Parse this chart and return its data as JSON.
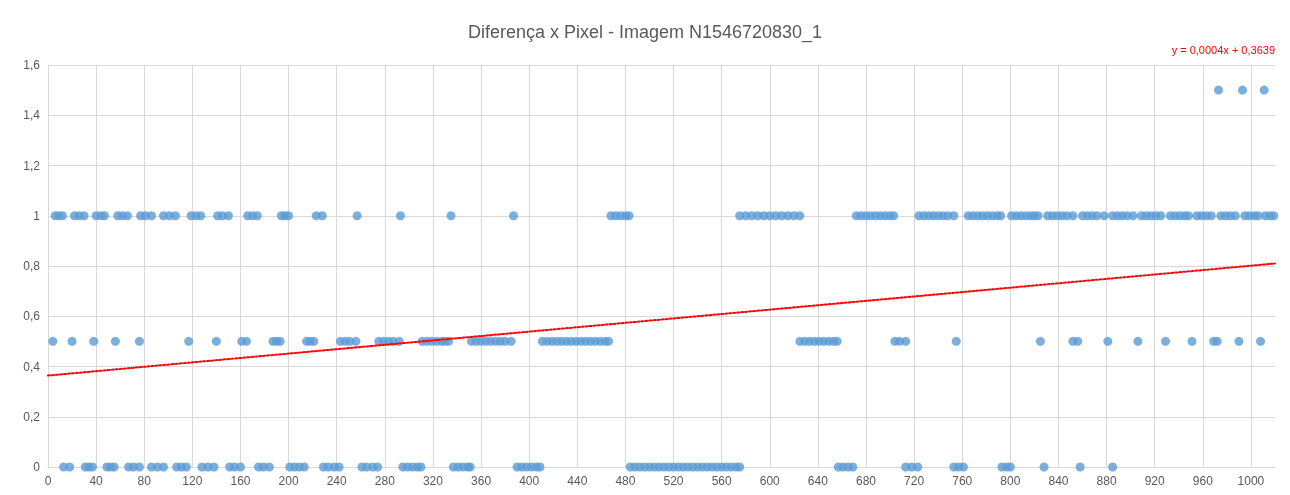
{
  "chart_data": {
    "type": "scatter",
    "title": "Diferença x Pixel - Imagem N1546720830_1",
    "annotations": [
      "y = 0,0004x + 0,3639"
    ],
    "xlim": [
      0,
      1020
    ],
    "xticks": [
      0,
      40,
      80,
      120,
      160,
      200,
      240,
      280,
      320,
      360,
      400,
      440,
      480,
      520,
      560,
      600,
      640,
      680,
      720,
      760,
      800,
      840,
      880,
      920,
      960,
      1000
    ],
    "ylim": [
      0,
      1.6
    ],
    "yticks": [
      0,
      {
        "value": 0.2,
        "label": "0,2"
      },
      {
        "value": 0.4,
        "label": "0,4"
      },
      {
        "value": 0.6,
        "label": "0,6"
      },
      {
        "value": 0.8,
        "label": "0,8"
      },
      1,
      {
        "value": 1.2,
        "label": "1,2"
      },
      {
        "value": 1.4,
        "label": "1,4"
      },
      {
        "value": 1.6,
        "label": "1,6"
      }
    ],
    "grid": true,
    "marker": "circle",
    "series": [
      {
        "color": "#5b9bd5",
        "x": [
          6,
          9,
          12,
          22,
          26,
          30,
          40,
          44,
          47,
          58,
          62,
          66,
          77,
          81,
          86,
          96,
          101,
          106,
          119,
          123,
          127,
          141,
          145,
          150,
          166,
          170,
          174,
          194,
          197,
          200,
          223,
          228,
          257,
          293,
          335,
          387,
          468,
          472,
          476,
          480,
          483,
          575,
          580,
          585,
          590,
          595,
          600,
          605,
          610,
          615,
          620,
          625,
          672,
          676,
          680,
          684,
          688,
          692,
          696,
          700,
          703,
          724,
          728,
          732,
          736,
          740,
          744,
          748,
          753,
          765,
          769,
          773,
          777,
          781,
          785,
          789,
          792,
          801,
          805,
          809,
          813,
          817,
          820,
          823,
          831,
          835,
          839,
          843,
          847,
          852,
          860,
          864,
          868,
          872,
          878,
          885,
          889,
          893,
          897,
          902,
          909,
          913,
          917,
          921,
          925,
          933,
          937,
          941,
          945,
          948,
          955,
          959,
          963,
          967,
          975,
          979,
          983,
          987,
          995,
          999,
          1003,
          1006,
          1012,
          1016,
          1019,
          4,
          20,
          38,
          56,
          76,
          117,
          140,
          161,
          165,
          187,
          190,
          193,
          215,
          218,
          221,
          243,
          247,
          251,
          256,
          275,
          279,
          283,
          287,
          292,
          311,
          315,
          319,
          323,
          327,
          330,
          333,
          352,
          356,
          360,
          364,
          368,
          372,
          376,
          380,
          385,
          411,
          415,
          419,
          423,
          427,
          431,
          435,
          439,
          443,
          447,
          451,
          455,
          459,
          463,
          466,
          625,
          629,
          633,
          637,
          641,
          645,
          649,
          653,
          656,
          704,
          708,
          713,
          755,
          825,
          852,
          856,
          881,
          906,
          929,
          951,
          969,
          972,
          990,
          1008,
          13,
          18,
          31,
          34,
          37,
          49,
          52,
          55,
          67,
          71,
          76,
          86,
          91,
          96,
          107,
          111,
          115,
          128,
          133,
          138,
          151,
          155,
          160,
          175,
          179,
          184,
          201,
          205,
          209,
          213,
          229,
          233,
          238,
          242,
          261,
          265,
          270,
          274,
          295,
          299,
          303,
          307,
          310,
          337,
          341,
          345,
          349,
          351,
          390,
          394,
          398,
          402,
          406,
          409,
          484,
          488,
          492,
          496,
          500,
          504,
          508,
          512,
          516,
          520,
          524,
          528,
          532,
          536,
          540,
          544,
          548,
          552,
          556,
          560,
          564,
          568,
          572,
          575,
          657,
          661,
          665,
          669,
          713,
          718,
          723,
          753,
          757,
          761,
          793,
          797,
          800,
          828,
          858,
          885,
          973,
          993,
          1011
        ],
        "values": [
          1,
          1,
          1,
          1,
          1,
          1,
          1,
          1,
          1,
          1,
          1,
          1,
          1,
          1,
          1,
          1,
          1,
          1,
          1,
          1,
          1,
          1,
          1,
          1,
          1,
          1,
          1,
          1,
          1,
          1,
          1,
          1,
          1,
          1,
          1,
          1,
          1,
          1,
          1,
          1,
          1,
          1,
          1,
          1,
          1,
          1,
          1,
          1,
          1,
          1,
          1,
          1,
          1,
          1,
          1,
          1,
          1,
          1,
          1,
          1,
          1,
          1,
          1,
          1,
          1,
          1,
          1,
          1,
          1,
          1,
          1,
          1,
          1,
          1,
          1,
          1,
          1,
          1,
          1,
          1,
          1,
          1,
          1,
          1,
          1,
          1,
          1,
          1,
          1,
          1,
          1,
          1,
          1,
          1,
          1,
          1,
          1,
          1,
          1,
          1,
          1,
          1,
          1,
          1,
          1,
          1,
          1,
          1,
          1,
          1,
          1,
          1,
          1,
          1,
          1,
          1,
          1,
          1,
          1,
          1,
          1,
          1,
          1,
          1,
          1,
          0.5,
          0.5,
          0.5,
          0.5,
          0.5,
          0.5,
          0.5,
          0.5,
          0.5,
          0.5,
          0.5,
          0.5,
          0.5,
          0.5,
          0.5,
          0.5,
          0.5,
          0.5,
          0.5,
          0.5,
          0.5,
          0.5,
          0.5,
          0.5,
          0.5,
          0.5,
          0.5,
          0.5,
          0.5,
          0.5,
          0.5,
          0.5,
          0.5,
          0.5,
          0.5,
          0.5,
          0.5,
          0.5,
          0.5,
          0.5,
          0.5,
          0.5,
          0.5,
          0.5,
          0.5,
          0.5,
          0.5,
          0.5,
          0.5,
          0.5,
          0.5,
          0.5,
          0.5,
          0.5,
          0.5,
          0.5,
          0.5,
          0.5,
          0.5,
          0.5,
          0.5,
          0.5,
          0.5,
          0.5,
          0.5,
          0.5,
          0.5,
          0.5,
          0.5,
          0.5,
          0.5,
          0.5,
          0.5,
          0.5,
          0.5,
          0.5,
          0.5,
          0.5,
          0.5,
          0,
          0,
          0,
          0,
          0,
          0,
          0,
          0,
          0,
          0,
          0,
          0,
          0,
          0,
          0,
          0,
          0,
          0,
          0,
          0,
          0,
          0,
          0,
          0,
          0,
          0,
          0,
          0,
          0,
          0,
          0,
          0,
          0,
          0,
          0,
          0,
          0,
          0,
          0,
          0,
          0,
          0,
          0,
          0,
          0,
          0,
          0,
          0,
          0,
          0,
          0,
          0,
          0,
          0,
          0,
          0,
          0,
          0,
          0,
          0,
          0,
          0,
          0,
          0,
          0,
          0,
          0,
          0,
          0,
          0,
          0,
          0,
          0,
          0,
          0,
          0,
          0,
          0,
          0,
          0,
          0,
          0,
          0,
          0,
          0,
          0,
          0,
          0,
          0,
          0,
          0,
          0,
          0,
          0,
          1.5,
          1.5,
          1.5
        ]
      },
      {
        "type": "line",
        "color": "#ff0000",
        "line_style": "dotted",
        "marker": "none",
        "x": [
          0,
          1020
        ],
        "values": [
          0.364,
          0.81
        ]
      }
    ]
  }
}
